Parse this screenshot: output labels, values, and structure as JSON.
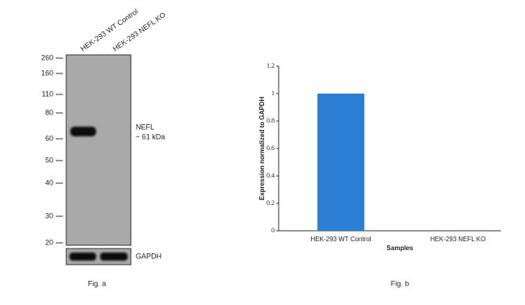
{
  "blot": {
    "lanes": [
      "HEK-293 WT Control",
      "HEK-293 NEFL KO"
    ],
    "markers": [
      "260",
      "160",
      "110",
      "80",
      "60",
      "50",
      "40",
      "30",
      "20"
    ],
    "band_label": "NEFL",
    "band_size": "~ 61 kDa",
    "loading_control": "GAPDH",
    "caption": "Fig. a"
  },
  "chart_data": {
    "type": "bar",
    "categories": [
      "HEK-293 WT Control",
      "HEK-293 NEFL KO"
    ],
    "values": [
      1,
      0
    ],
    "color": "#2a7fd4",
    "ylim": [
      0,
      1.2
    ],
    "yticks": [
      0,
      0.2,
      0.4,
      0.6,
      0.8,
      1,
      1.2
    ],
    "xlabel": "Samples",
    "ylabel": "Expression  normalized to GAPDH",
    "caption": "Fig. b"
  }
}
